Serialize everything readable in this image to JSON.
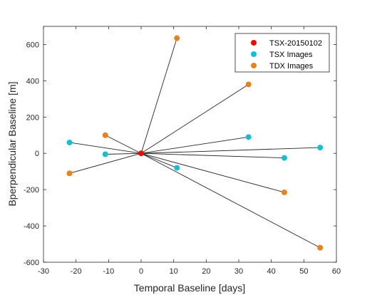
{
  "chart_data": {
    "type": "scatter",
    "title": "",
    "xlabel": "Temporal Baseline [days]",
    "ylabel": "Bperpendicular Baseline [m]",
    "xlim": [
      -30,
      60
    ],
    "ylim": [
      -600,
      700
    ],
    "xticks": [
      -30,
      -20,
      -10,
      0,
      10,
      20,
      30,
      40,
      50,
      60
    ],
    "yticks": [
      -600,
      -400,
      -200,
      0,
      200,
      400,
      600
    ],
    "grid": false,
    "legend_position": "top-right",
    "reference": {
      "name": "TSX-20150102",
      "color": "#ff0000",
      "x": 0,
      "y": 0
    },
    "series": [
      {
        "name": "TSX Images",
        "color": "#17becf",
        "points": [
          {
            "x": -22,
            "y": 60
          },
          {
            "x": -11,
            "y": -5
          },
          {
            "x": 11,
            "y": -80
          },
          {
            "x": 33,
            "y": 90
          },
          {
            "x": 44,
            "y": -25
          },
          {
            "x": 55,
            "y": 32
          }
        ]
      },
      {
        "name": "TDX Images",
        "color": "#e8821a",
        "points": [
          {
            "x": -22,
            "y": -110
          },
          {
            "x": -11,
            "y": 100
          },
          {
            "x": 11,
            "y": 635
          },
          {
            "x": 33,
            "y": 380
          },
          {
            "x": 44,
            "y": -215
          },
          {
            "x": 55,
            "y": -520
          }
        ]
      }
    ],
    "connector_color": "#262626"
  }
}
